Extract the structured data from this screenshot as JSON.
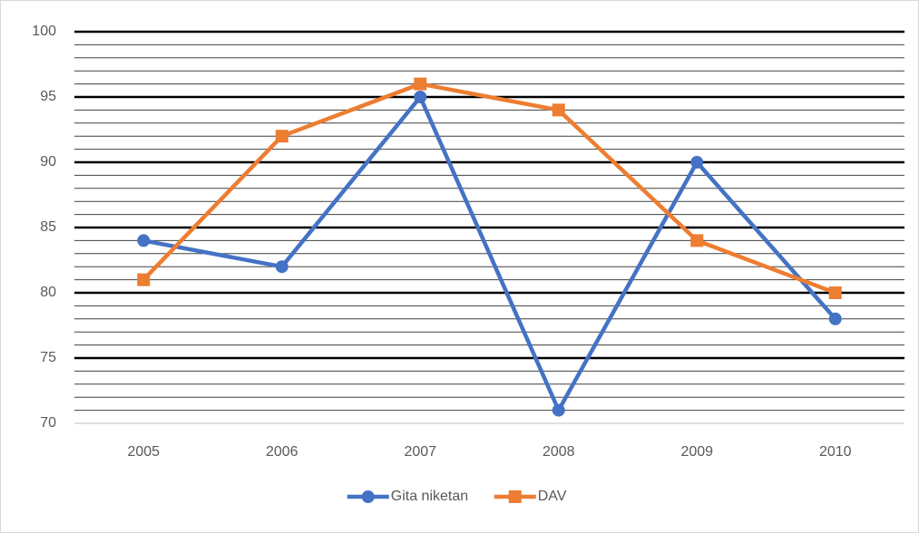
{
  "chart_data": {
    "type": "line",
    "categories": [
      "2005",
      "2006",
      "2007",
      "2008",
      "2009",
      "2010"
    ],
    "series": [
      {
        "name": "Gita niketan",
        "color": "#4472c4",
        "marker": "circle",
        "values": [
          84,
          82,
          95,
          71,
          90,
          78
        ]
      },
      {
        "name": "DAV",
        "color": "#ed7d31",
        "marker": "square",
        "values": [
          81,
          92,
          96,
          94,
          84,
          80
        ]
      }
    ],
    "ylim": [
      70,
      100
    ],
    "yticks": [
      70,
      75,
      80,
      85,
      90,
      95,
      100
    ],
    "grid": true,
    "minor_grid": true,
    "legend": "bottom"
  }
}
